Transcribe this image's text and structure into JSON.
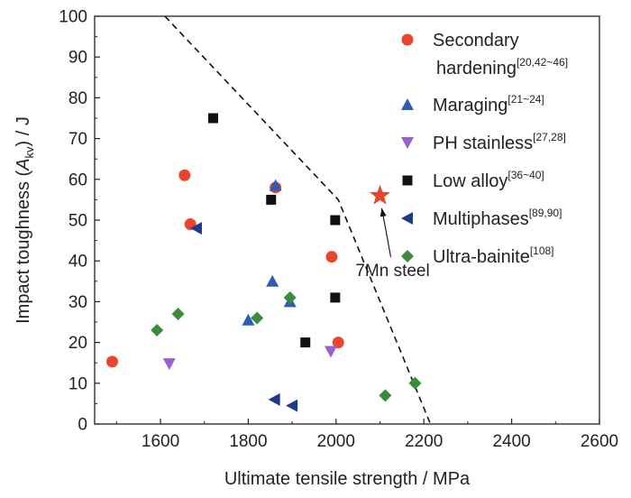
{
  "chart_data": {
    "type": "scatter",
    "title": "",
    "xlabel": "Ultimate tensile strength / MPa",
    "ylabel_parts": [
      "Impact toughness (",
      "A",
      "kv",
      ") / J"
    ],
    "xlim": [
      1450,
      2600
    ],
    "ylim": [
      0,
      100
    ],
    "xticks": [
      1600,
      1800,
      2000,
      2200,
      2400,
      2600
    ],
    "yticks": [
      0,
      10,
      20,
      30,
      40,
      50,
      60,
      70,
      80,
      90,
      100
    ],
    "grid": false,
    "legend_position": "top-right",
    "series": [
      {
        "name_lines": [
          "Secondary",
          "hardening"
        ],
        "ref": "[20,42~46]",
        "marker": "circle",
        "color": "#e8452c",
        "points": [
          [
            1490,
            15.3
          ],
          [
            1655,
            61
          ],
          [
            1668,
            49
          ],
          [
            1862,
            58
          ],
          [
            1990,
            41
          ],
          [
            2005,
            20
          ]
        ]
      },
      {
        "name_lines": [
          "Maraging"
        ],
        "ref": "[21~24]",
        "marker": "triangle-up",
        "color": "#2e5db8",
        "points": [
          [
            1800,
            25.5
          ],
          [
            1855,
            35
          ],
          [
            1862,
            58.5
          ],
          [
            1895,
            30
          ]
        ]
      },
      {
        "name_lines": [
          "PH stainless"
        ],
        "ref": "[27,28]",
        "marker": "triangle-down",
        "color": "#9a5fd0",
        "points": [
          [
            1620,
            14.8
          ],
          [
            1988,
            17.8
          ]
        ]
      },
      {
        "name_lines": [
          "Low alloy"
        ],
        "ref": "[36~40]",
        "marker": "square",
        "color": "#111111",
        "points": [
          [
            1720,
            75
          ],
          [
            1852,
            55
          ],
          [
            1930,
            20
          ],
          [
            1998,
            50
          ],
          [
            1998,
            31
          ]
        ]
      },
      {
        "name_lines": [
          "Multiphases"
        ],
        "ref": "[89,90]",
        "marker": "triangle-left",
        "color": "#1e3a8a",
        "points": [
          [
            1682,
            48
          ],
          [
            1860,
            6
          ],
          [
            1900,
            4.5
          ]
        ]
      },
      {
        "name_lines": [
          "Ultra-bainite"
        ],
        "ref": "[108]",
        "marker": "diamond",
        "color": "#3a8c3a",
        "points": [
          [
            1592,
            23
          ],
          [
            1640,
            27
          ],
          [
            1820,
            26
          ],
          [
            1895,
            31
          ],
          [
            2112,
            7
          ],
          [
            2180,
            10
          ]
        ]
      }
    ],
    "highlight": {
      "label": "7Mn steel",
      "marker": "star",
      "color": "#e8452c",
      "point": [
        2100,
        56
      ]
    },
    "boundary_line": {
      "style": "dashed",
      "color": "#111111",
      "points": [
        [
          1610,
          100
        ],
        [
          2005,
          55
        ],
        [
          2215,
          0
        ]
      ]
    }
  }
}
